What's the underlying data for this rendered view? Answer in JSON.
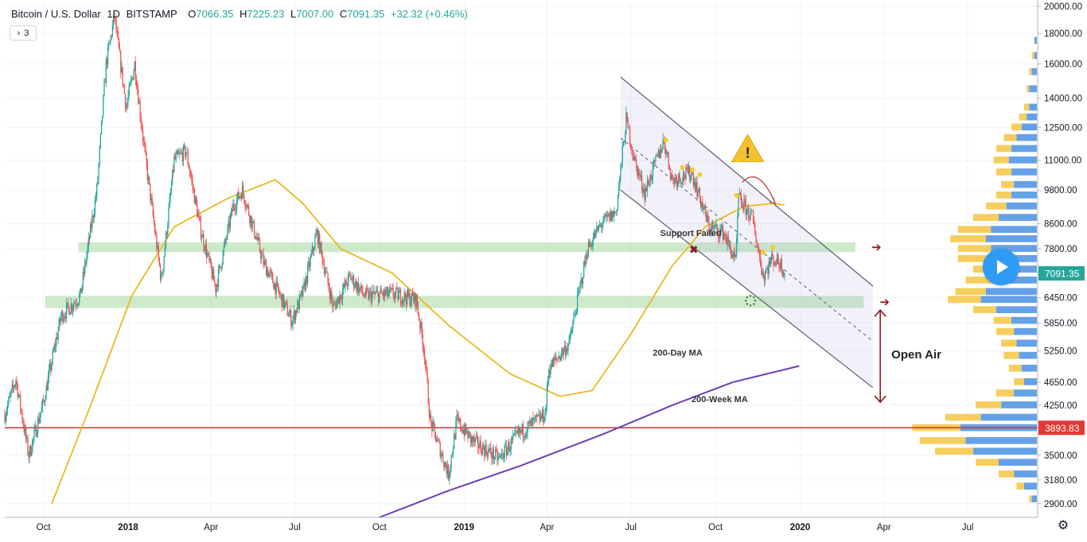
{
  "header": {
    "symbol": "Bitcoin / U.S. Dollar",
    "interval": "1D",
    "exchange": "BITSTAMP",
    "open_label": "O",
    "open": "7066.35",
    "high_label": "H",
    "high": "7225.23",
    "low_label": "L",
    "low": "7007.00",
    "close_label": "C",
    "close": "7091.35",
    "change": "+32.32 (+0.46%)",
    "collapse_count": "3"
  },
  "colors": {
    "up": "#26a69a",
    "down": "#ef5350",
    "ma200d": "#e8b923",
    "ma200w": "#6a3fb5",
    "zones": "#a8d8a0",
    "channel": "#5a5a6e",
    "arrow": "#8b1a1a",
    "price_tag": "#26a69a",
    "support_line": "#c0392b",
    "vp_up": "#4a90e2",
    "vp_down": "#f5c542"
  },
  "chart_data": {
    "type": "candlestick",
    "title": "Bitcoin / U.S. Dollar",
    "y_axis": {
      "scale": "log",
      "range": [
        2750,
        20500
      ],
      "ticks": [
        "20000.00",
        "18000.00",
        "16000.00",
        "14000.00",
        "12500.00",
        "11000.00",
        "9800.00",
        "8600.00",
        "7800.00",
        "6450.00",
        "5850.00",
        "5250.00",
        "4650.00",
        "4250.00",
        "3500.00",
        "3180.00",
        "2900.00"
      ]
    },
    "x_axis": {
      "range": [
        "2017-08-20",
        "2020-09-15"
      ],
      "ticks": [
        {
          "label": "Oct",
          "date": "2017-10-01"
        },
        {
          "label": "2018",
          "date": "2018-01-01"
        },
        {
          "label": "Apr",
          "date": "2018-04-01"
        },
        {
          "label": "Jul",
          "date": "2018-07-01"
        },
        {
          "label": "Oct",
          "date": "2018-10-01"
        },
        {
          "label": "2019",
          "date": "2019-01-01"
        },
        {
          "label": "Apr",
          "date": "2019-04-01"
        },
        {
          "label": "Jul",
          "date": "2019-07-01"
        },
        {
          "label": "Oct",
          "date": "2019-10-01"
        },
        {
          "label": "2020",
          "date": "2020-01-01"
        },
        {
          "label": "Apr",
          "date": "2020-04-01"
        },
        {
          "label": "Jul",
          "date": "2020-07-01"
        }
      ]
    },
    "price_path": [
      [
        "2017-08-20",
        4100
      ],
      [
        "2017-09-01",
        4700
      ],
      [
        "2017-09-15",
        3500
      ],
      [
        "2017-10-01",
        4300
      ],
      [
        "2017-10-20",
        6000
      ],
      [
        "2017-11-10",
        6500
      ],
      [
        "2017-11-28",
        9800
      ],
      [
        "2017-12-08",
        16000
      ],
      [
        "2017-12-17",
        19200
      ],
      [
        "2017-12-30",
        13500
      ],
      [
        "2018-01-08",
        16000
      ],
      [
        "2018-01-20",
        11000
      ],
      [
        "2018-02-06",
        6900
      ],
      [
        "2018-02-20",
        11000
      ],
      [
        "2018-03-05",
        11400
      ],
      [
        "2018-03-20",
        8500
      ],
      [
        "2018-04-06",
        6700
      ],
      [
        "2018-04-25",
        9200
      ],
      [
        "2018-05-05",
        9800
      ],
      [
        "2018-05-28",
        7400
      ],
      [
        "2018-06-15",
        6500
      ],
      [
        "2018-06-28",
        5900
      ],
      [
        "2018-07-10",
        6600
      ],
      [
        "2018-07-25",
        8300
      ],
      [
        "2018-08-12",
        6200
      ],
      [
        "2018-08-30",
        7000
      ],
      [
        "2018-09-15",
        6500
      ],
      [
        "2018-10-15",
        6550
      ],
      [
        "2018-11-10",
        6400
      ],
      [
        "2018-11-19",
        5200
      ],
      [
        "2018-11-25",
        4000
      ],
      [
        "2018-12-15",
        3250
      ],
      [
        "2018-12-24",
        4000
      ],
      [
        "2019-01-10",
        3700
      ],
      [
        "2019-02-08",
        3450
      ],
      [
        "2019-03-01",
        3800
      ],
      [
        "2019-03-30",
        4100
      ],
      [
        "2019-04-03",
        4900
      ],
      [
        "2019-04-25",
        5400
      ],
      [
        "2019-05-15",
        7800
      ],
      [
        "2019-05-30",
        8600
      ],
      [
        "2019-06-15",
        9000
      ],
      [
        "2019-06-26",
        12900
      ],
      [
        "2019-07-05",
        11000
      ],
      [
        "2019-07-16",
        9700
      ],
      [
        "2019-08-06",
        11900
      ],
      [
        "2019-08-15",
        10200
      ],
      [
        "2019-09-05",
        10500
      ],
      [
        "2019-09-24",
        8500
      ],
      [
        "2019-10-10",
        8300
      ],
      [
        "2019-10-23",
        7400
      ],
      [
        "2019-10-26",
        9500
      ],
      [
        "2019-11-10",
        8800
      ],
      [
        "2019-11-22",
        7000
      ],
      [
        "2019-12-01",
        7500
      ],
      [
        "2019-12-10",
        7400
      ],
      [
        "2019-12-16",
        7091.35
      ]
    ],
    "ma_200_day": {
      "label": "200-Day MA",
      "points": [
        [
          "2017-10-10",
          2900
        ],
        [
          "2017-11-20",
          4200
        ],
        [
          "2018-01-05",
          6500
        ],
        [
          "2018-02-20",
          8500
        ],
        [
          "2018-04-20",
          9500
        ],
        [
          "2018-06-10",
          10200
        ],
        [
          "2018-07-10",
          9300
        ],
        [
          "2018-08-20",
          7800
        ],
        [
          "2018-10-15",
          7100
        ],
        [
          "2018-12-15",
          5800
        ],
        [
          "2019-02-20",
          4800
        ],
        [
          "2019-04-15",
          4400
        ],
        [
          "2019-05-20",
          4500
        ],
        [
          "2019-07-01",
          5600
        ],
        [
          "2019-08-15",
          7300
        ],
        [
          "2019-09-20",
          8500
        ],
        [
          "2019-11-01",
          9200
        ],
        [
          "2019-12-01",
          9300
        ],
        [
          "2019-12-15",
          9250
        ]
      ]
    },
    "ma_200_week": {
      "label": "200-Week MA",
      "points": [
        [
          "2018-10-01",
          2750
        ],
        [
          "2018-12-15",
          3050
        ],
        [
          "2019-03-01",
          3350
        ],
        [
          "2019-06-01",
          3800
        ],
        [
          "2019-08-15",
          4250
        ],
        [
          "2019-10-20",
          4650
        ],
        [
          "2019-12-31",
          4950
        ]
      ]
    },
    "current_price_label": "7091.35",
    "support_price": 3893.83,
    "support_price_label": "3893.83",
    "support_zones": [
      {
        "low": 7700,
        "high": 8000,
        "start": "2017-11-08",
        "end": "2020-03-01"
      },
      {
        "low": 6200,
        "high": 6500,
        "start": "2017-10-03",
        "end": "2020-03-10"
      }
    ],
    "channel": {
      "upper": [
        [
          "2019-06-20",
          15200
        ],
        [
          "2020-03-20",
          6750
        ]
      ],
      "mid": [
        [
          "2019-06-20",
          12000
        ],
        [
          "2020-03-20",
          5450
        ]
      ],
      "lower": [
        [
          "2019-06-20",
          9800
        ],
        [
          "2020-03-20",
          4550
        ]
      ]
    },
    "annotations": {
      "support_failed": "Support Failed",
      "open_air": "Open Air",
      "ma_200_day": "200-Day MA",
      "ma_200_week": "200-Week MA"
    },
    "volume_profile": [
      {
        "price": 17500,
        "up": 1,
        "down": 0
      },
      {
        "price": 16500,
        "up": 1,
        "down": 1
      },
      {
        "price": 15500,
        "up": 2,
        "down": 1
      },
      {
        "price": 14500,
        "up": 3,
        "down": 1
      },
      {
        "price": 13500,
        "up": 3,
        "down": 2
      },
      {
        "price": 13000,
        "up": 4,
        "down": 3
      },
      {
        "price": 12500,
        "up": 6,
        "down": 4
      },
      {
        "price": 12000,
        "up": 8,
        "down": 5
      },
      {
        "price": 11500,
        "up": 10,
        "down": 6
      },
      {
        "price": 11000,
        "up": 11,
        "down": 6
      },
      {
        "price": 10500,
        "up": 10,
        "down": 6
      },
      {
        "price": 10000,
        "up": 9,
        "down": 5
      },
      {
        "price": 9600,
        "up": 10,
        "down": 6
      },
      {
        "price": 9200,
        "up": 12,
        "down": 8
      },
      {
        "price": 8800,
        "up": 15,
        "down": 10
      },
      {
        "price": 8400,
        "up": 18,
        "down": 13
      },
      {
        "price": 8100,
        "up": 20,
        "down": 14
      },
      {
        "price": 7800,
        "up": 18,
        "down": 13
      },
      {
        "price": 7500,
        "up": 18,
        "down": 13
      },
      {
        "price": 7200,
        "up": 15,
        "down": 10
      },
      {
        "price": 6900,
        "up": 17,
        "down": 11
      },
      {
        "price": 6600,
        "up": 20,
        "down": 12
      },
      {
        "price": 6400,
        "up": 22,
        "down": 13
      },
      {
        "price": 6150,
        "up": 16,
        "down": 9
      },
      {
        "price": 5900,
        "up": 10,
        "down": 7
      },
      {
        "price": 5650,
        "up": 9,
        "down": 7
      },
      {
        "price": 5400,
        "up": 8,
        "down": 6
      },
      {
        "price": 5150,
        "up": 7,
        "down": 6
      },
      {
        "price": 4900,
        "up": 6,
        "down": 5
      },
      {
        "price": 4650,
        "up": 5,
        "down": 4
      },
      {
        "price": 4450,
        "up": 9,
        "down": 7
      },
      {
        "price": 4250,
        "up": 14,
        "down": 10
      },
      {
        "price": 4050,
        "up": 22,
        "down": 14
      },
      {
        "price": 3890,
        "up": 30,
        "down": 19
      },
      {
        "price": 3700,
        "up": 28,
        "down": 18
      },
      {
        "price": 3550,
        "up": 25,
        "down": 15
      },
      {
        "price": 3400,
        "up": 15,
        "down": 9
      },
      {
        "price": 3250,
        "up": 9,
        "down": 6
      },
      {
        "price": 3100,
        "up": 5,
        "down": 3
      },
      {
        "price": 2950,
        "up": 2,
        "down": 1
      }
    ]
  }
}
